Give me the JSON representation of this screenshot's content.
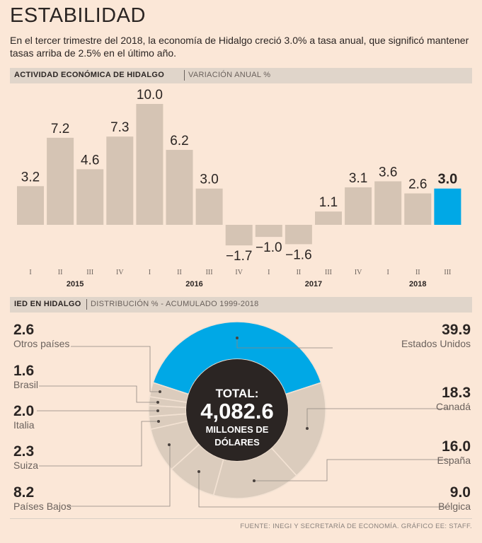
{
  "header": {
    "title": "ESTABILIDAD",
    "subtitle": "En el tercer trimestre del 2018, la economía de Hidalgo creció 3.0% a tasa anual, que significó mantener tasas arriba de 2.5% en el último año."
  },
  "section1": {
    "title": "ACTIVIDAD ECONÓMICA DE HIDALGO",
    "subtitle": "VARIACIÓN ANUAL %"
  },
  "section2": {
    "title": "IED EN HIDALGO",
    "subtitle": "DISTRIBUCIÓN % - ACUMULADO 1999-2018"
  },
  "colors": {
    "bar": "#d5c4b4",
    "highlight": "#00a8e6",
    "donut_grey": "#dbccbd",
    "center": "#2b2523",
    "background": "#fbe7d7"
  },
  "chart_data": [
    {
      "type": "bar",
      "title": "ACTIVIDAD ECONÓMICA DE HIDALGO",
      "ylabel": "VARIACIÓN ANUAL %",
      "categories": [
        "I",
        "II",
        "III",
        "IV",
        "I",
        "II",
        "III",
        "IV",
        "I",
        "II",
        "III",
        "IV",
        "I",
        "II",
        "III"
      ],
      "years": [
        {
          "label": "2015",
          "start": 0,
          "end": 3
        },
        {
          "label": "2016",
          "start": 4,
          "end": 7
        },
        {
          "label": "2017",
          "start": 8,
          "end": 11
        },
        {
          "label": "2018",
          "start": 12,
          "end": 14
        }
      ],
      "values": [
        3.2,
        7.2,
        4.6,
        7.3,
        10.0,
        6.2,
        3.0,
        -1.7,
        -1.0,
        -1.6,
        1.1,
        3.1,
        3.6,
        2.6,
        3.0
      ],
      "value_labels": [
        "3.2",
        "7.2",
        "4.6",
        "7.3",
        "10.0",
        "6.2",
        "3.0",
        "-1.7",
        "-1.0",
        "-1.6",
        "1.1",
        "3.1",
        "3.6",
        "2.6",
        "3.0"
      ],
      "highlight_index": 14,
      "ylim": [
        -2,
        10
      ]
    },
    {
      "type": "pie",
      "title": "IED EN HIDALGO",
      "total": {
        "label": "TOTAL:",
        "value": "4,082.6",
        "unit": "MILLONES DE DÓLARES"
      },
      "slices": [
        {
          "name": "Estados Unidos",
          "value": 39.9,
          "label": "39.9"
        },
        {
          "name": "Canadá",
          "value": 18.3,
          "label": "18.3"
        },
        {
          "name": "España",
          "value": 16.0,
          "label": "16.0"
        },
        {
          "name": "Bélgica",
          "value": 9.0,
          "label": "9.0"
        },
        {
          "name": "Países Bajos",
          "value": 8.2,
          "label": "8.2"
        },
        {
          "name": "Suiza",
          "value": 2.3,
          "label": "2.3"
        },
        {
          "name": "Italia",
          "value": 2.0,
          "label": "2.0"
        },
        {
          "name": "Brasil",
          "value": 1.6,
          "label": "1.6"
        },
        {
          "name": "Otros países",
          "value": 2.6,
          "label": "2.6"
        }
      ]
    }
  ],
  "source": "FUENTE: INEGI Y SECRETARÍA DE ECONOMÍA. GRÁFICO EE: STAFF."
}
